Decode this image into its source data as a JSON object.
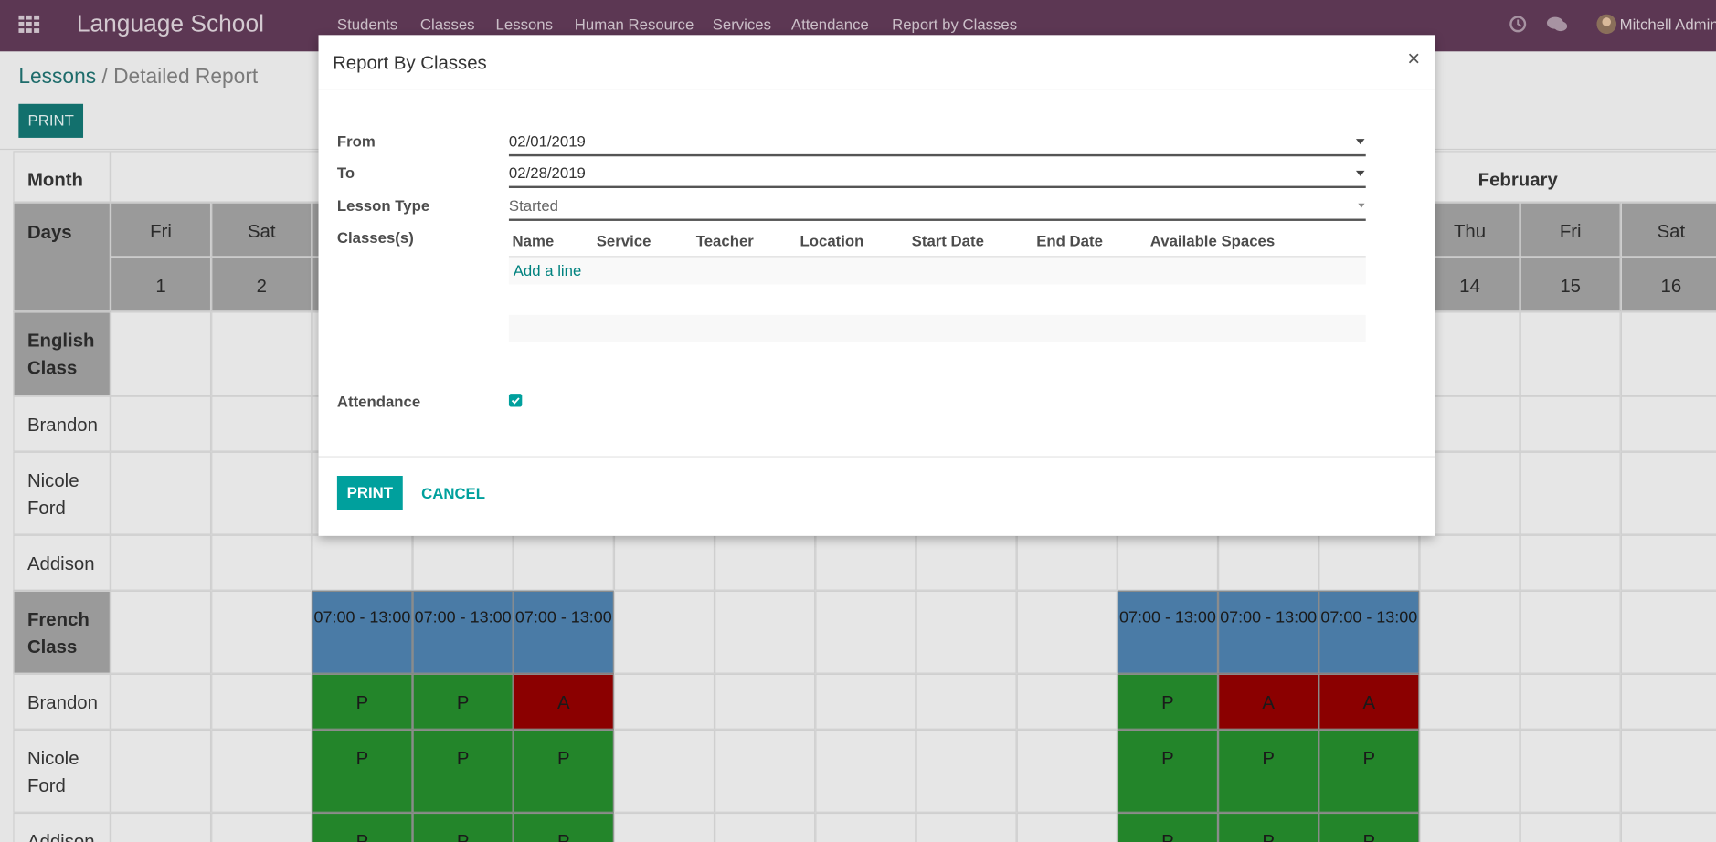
{
  "navbar": {
    "brand": "Language School",
    "menu": [
      "Students",
      "Classes",
      "Lessons",
      "Human Resource",
      "Services",
      "Attendance",
      "Report by Classes"
    ],
    "user": "Mitchell Admin"
  },
  "breadcrumb": {
    "parent": "Lessons",
    "separator": "/",
    "current": "Detailed Report"
  },
  "print_button": "PRINT",
  "table": {
    "month_label": "Month",
    "month": "February",
    "days_label": "Days",
    "weekdays": [
      "Fri",
      "Sat",
      null,
      null,
      null,
      null,
      null,
      null,
      null,
      null,
      null,
      null,
      null,
      "Thu",
      "Fri",
      "Sat"
    ],
    "day_numbers": [
      1,
      2,
      null,
      null,
      null,
      null,
      null,
      null,
      null,
      null,
      null,
      null,
      null,
      14,
      15,
      16
    ],
    "session_color": "#4a7ba6",
    "status_colors": {
      "P": "#23852a",
      "A": "#8b0000"
    },
    "rows": [
      {
        "label": "English Class",
        "group": true,
        "cells": [
          null,
          null,
          null,
          null,
          null,
          null,
          null,
          null,
          null,
          null,
          null,
          null,
          null,
          null,
          null,
          null
        ]
      },
      {
        "label": "Brandon",
        "group": false,
        "cells": [
          null,
          null,
          null,
          null,
          null,
          null,
          null,
          null,
          null,
          null,
          null,
          null,
          null,
          null,
          null,
          null
        ]
      },
      {
        "label": "Nicole Ford",
        "group": false,
        "cells": [
          null,
          null,
          null,
          null,
          null,
          null,
          null,
          null,
          null,
          null,
          null,
          null,
          null,
          null,
          null,
          null
        ]
      },
      {
        "label": "Addison",
        "group": false,
        "cells": [
          null,
          null,
          null,
          null,
          null,
          null,
          null,
          null,
          null,
          null,
          null,
          null,
          null,
          null,
          null,
          null
        ]
      },
      {
        "label": "French Class",
        "group": true,
        "cells": [
          null,
          null,
          "07:00 - 13:00",
          "07:00 - 13:00",
          "07:00 - 13:00",
          null,
          null,
          null,
          null,
          null,
          "07:00 - 13:00",
          "07:00 - 13:00",
          "07:00 - 13:00",
          null,
          null,
          null
        ]
      },
      {
        "label": "Brandon",
        "group": false,
        "cells": [
          null,
          null,
          "P",
          "P",
          "A",
          null,
          null,
          null,
          null,
          null,
          "P",
          "A",
          "A",
          null,
          null,
          null
        ]
      },
      {
        "label": "Nicole Ford",
        "group": false,
        "cells": [
          null,
          null,
          "P",
          "P",
          "P",
          null,
          null,
          null,
          null,
          null,
          "P",
          "P",
          "P",
          null,
          null,
          null
        ]
      },
      {
        "label": "Addison",
        "group": false,
        "cells": [
          null,
          null,
          "P",
          "P",
          "P",
          null,
          null,
          null,
          null,
          null,
          "P",
          "P",
          "P",
          null,
          null,
          null
        ]
      }
    ]
  },
  "modal": {
    "title": "Report By Classes",
    "close": "×",
    "from_label": "From",
    "from_value": "02/01/2019",
    "to_label": "To",
    "to_value": "02/28/2019",
    "lesson_type_label": "Lesson Type",
    "lesson_type_value": "Started",
    "classes_label": "Classes(s)",
    "columns": [
      "Name",
      "Service",
      "Teacher",
      "Location",
      "Start Date",
      "End Date",
      "Available Spaces"
    ],
    "add_line": "Add a line",
    "attendance_label": "Attendance",
    "print": "PRINT",
    "cancel": "CANCEL"
  }
}
